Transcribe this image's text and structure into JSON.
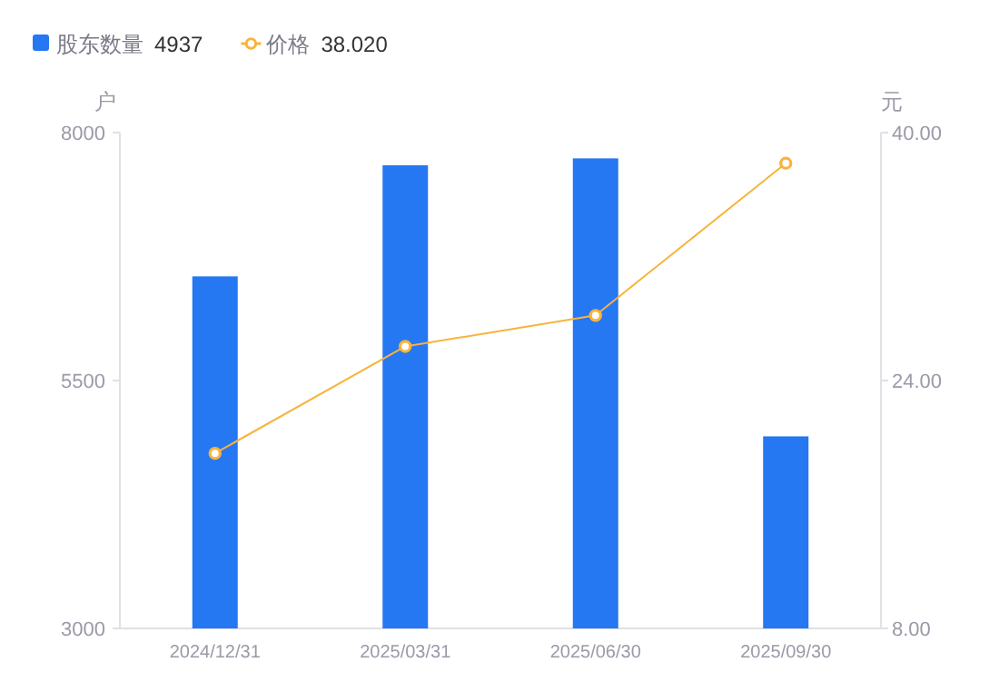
{
  "chart_data": {
    "type": "bar",
    "categories": [
      "2024/12/31",
      "2025/03/31",
      "2025/06/30",
      "2025/09/30"
    ],
    "series": [
      {
        "name": "股东数量",
        "color": "#2577f2",
        "values": [
          6550,
          7670,
          7740,
          4937
        ]
      },
      {
        "name": "价格",
        "type": "line",
        "axis": "y2",
        "color": "#f9b33a",
        "marker": "circle",
        "values": [
          19.3,
          26.2,
          28.2,
          38.02
        ]
      }
    ],
    "ylabel": "户",
    "y2label": "元",
    "ylim": [
      3000,
      8000
    ],
    "yticks": [
      3000,
      5500,
      8000
    ],
    "y2lim": [
      8,
      40
    ],
    "y2ticks": [
      {
        "value": 8,
        "label": "8.00"
      },
      {
        "value": 24,
        "label": "24.00"
      },
      {
        "value": 40,
        "label": "40.00"
      }
    ],
    "annotations": [
      "4937",
      "38.020"
    ],
    "legend": "top left",
    "grid": false
  }
}
